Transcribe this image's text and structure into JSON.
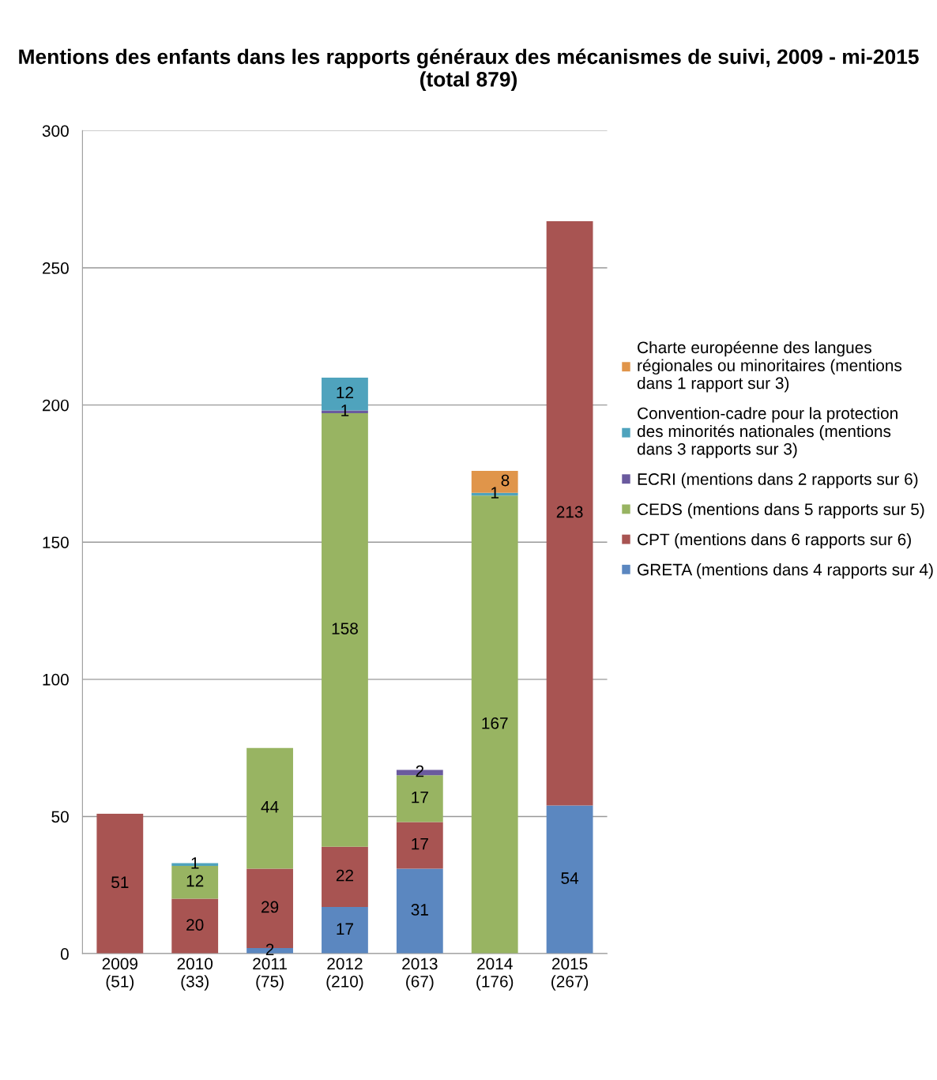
{
  "chart_data": {
    "type": "bar",
    "title": "Mentions des enfants dans les rapports généraux des mécanismes de suivi, 2009 - mi-2015 (total 879)",
    "categories": [
      "2009 (51)",
      "2010 (33)",
      "2011 (75)",
      "2012 (210)",
      "2013 (67)",
      "2014 (176)",
      "2015 (267)"
    ],
    "stacked": true,
    "data_labels": true,
    "grid": "y",
    "legend": "right",
    "ylim": [
      0,
      300
    ],
    "yticks": [
      0,
      50,
      100,
      150,
      200,
      250,
      300
    ],
    "series": [
      {
        "name": "GRETA (mentions dans 4 rapports sur 4)",
        "color": "#5b87c0",
        "values": [
          null,
          null,
          2,
          17,
          31,
          null,
          54
        ]
      },
      {
        "name": "CPT (mentions dans 6 rapports sur 6)",
        "color": "#a85452",
        "values": [
          51,
          20,
          29,
          22,
          17,
          null,
          213
        ]
      },
      {
        "name": "CEDS (mentions dans 5 rapports sur 5)",
        "color": "#98b462",
        "values": [
          null,
          12,
          44,
          158,
          17,
          167,
          null
        ]
      },
      {
        "name": "ECRI (mentions dans 2 rapports sur 6)",
        "color": "#6a5a9e",
        "values": [
          null,
          null,
          null,
          1,
          2,
          null,
          null
        ]
      },
      {
        "name": "Convention-cadre pour la protection des minorités nationales (mentions dans 3 rapports sur 3)",
        "color": "#4fa3bd",
        "values": [
          null,
          1,
          null,
          12,
          null,
          1,
          null
        ]
      },
      {
        "name": "Charte européenne des langues régionales ou minoritaires (mentions dans 1 rapport sur 3)",
        "color": "#e0954a",
        "values": [
          null,
          null,
          null,
          null,
          null,
          8,
          null
        ]
      }
    ]
  }
}
